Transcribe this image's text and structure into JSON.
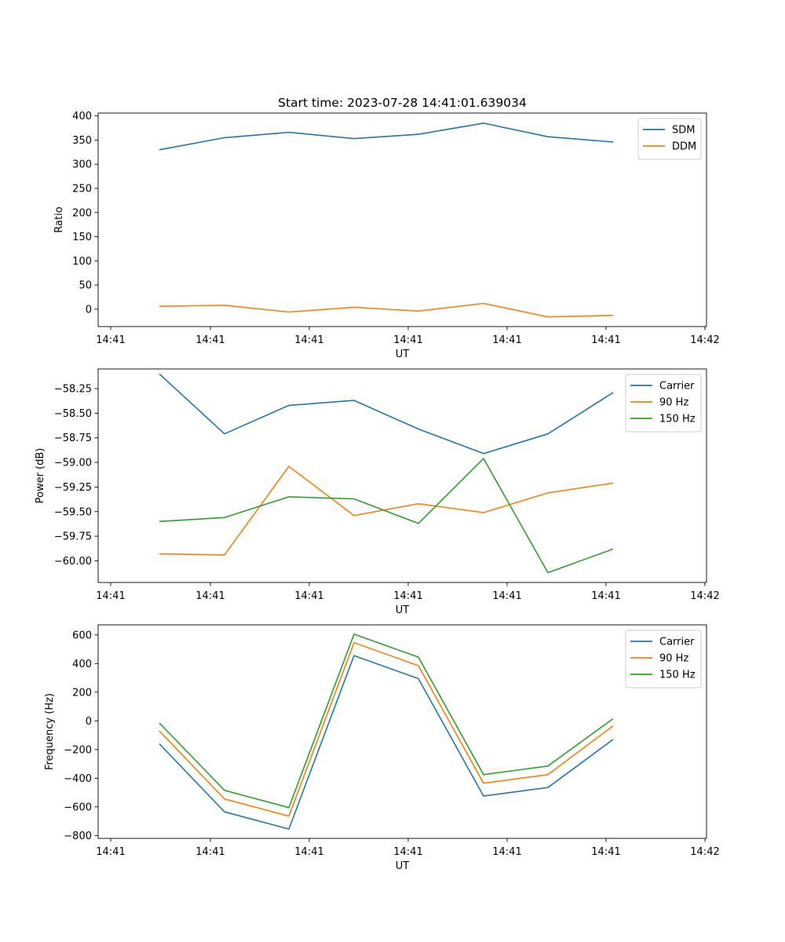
{
  "chart_data": [
    {
      "type": "line",
      "title": "Start time: 2023-07-28 14:41:01.639034",
      "xlabel": "UT",
      "ylabel": "Ratio",
      "legend": "top-right",
      "x_tick_labels": [
        "14:41",
        "14:41",
        "14:41",
        "14:41",
        "14:41",
        "14:41",
        "14:42"
      ],
      "yticks": [
        0,
        50,
        100,
        150,
        200,
        250,
        300,
        350,
        400
      ],
      "ytick_labels": [
        "0",
        "50",
        "100",
        "150",
        "200",
        "250",
        "300",
        "350",
        "400"
      ],
      "ylim": [
        -36,
        406
      ],
      "series": [
        {
          "name": "SDM",
          "color": "#1f77b4",
          "values": [
            330,
            355,
            366,
            353,
            362,
            385,
            357,
            346
          ]
        },
        {
          "name": "DDM",
          "color": "#ff7f0e",
          "values": [
            6,
            8,
            -6,
            4,
            -4,
            12,
            -16,
            -13
          ]
        }
      ]
    },
    {
      "type": "line",
      "title": "",
      "xlabel": "UT",
      "ylabel": "Power (dB)",
      "legend": "top-right",
      "x_tick_labels": [
        "14:41",
        "14:41",
        "14:41",
        "14:41",
        "14:41",
        "14:41",
        "14:42"
      ],
      "yticks": [
        -60.0,
        -59.75,
        -59.5,
        -59.25,
        -59.0,
        -58.75,
        -58.5,
        -58.25
      ],
      "ytick_labels": [
        "−60.00",
        "−59.75",
        "−59.50",
        "−59.25",
        "−59.00",
        "−58.75",
        "−58.50",
        "−58.25"
      ],
      "ylim": [
        -60.22,
        -58.05
      ],
      "series": [
        {
          "name": "Carrier",
          "color": "#1f77b4",
          "values": [
            -58.1,
            -58.71,
            -58.42,
            -58.37,
            -58.66,
            -58.91,
            -58.71,
            -58.29
          ]
        },
        {
          "name": "90 Hz",
          "color": "#ff7f0e",
          "values": [
            -59.93,
            -59.94,
            -59.04,
            -59.54,
            -59.42,
            -59.51,
            -59.31,
            -59.21
          ]
        },
        {
          "name": "150 Hz",
          "color": "#2ca02c",
          "values": [
            -59.6,
            -59.56,
            -59.35,
            -59.37,
            -59.62,
            -58.96,
            -60.12,
            -59.88
          ]
        }
      ]
    },
    {
      "type": "line",
      "title": "",
      "xlabel": "UT",
      "ylabel": "Frequency (Hz)",
      "legend": "top-right",
      "x_tick_labels": [
        "14:41",
        "14:41",
        "14:41",
        "14:41",
        "14:41",
        "14:41",
        "14:42"
      ],
      "yticks": [
        -800,
        -600,
        -400,
        -200,
        0,
        200,
        400,
        600
      ],
      "ytick_labels": [
        "−800",
        "−600",
        "−400",
        "−200",
        "0",
        "200",
        "400",
        "600"
      ],
      "ylim": [
        -820,
        670
      ],
      "series": [
        {
          "name": "Carrier",
          "color": "#1f77b4",
          "values": [
            -160,
            -635,
            -755,
            455,
            295,
            -525,
            -465,
            -130
          ]
        },
        {
          "name": "90 Hz",
          "color": "#ff7f0e",
          "values": [
            -70,
            -545,
            -665,
            545,
            385,
            -435,
            -375,
            -35
          ]
        },
        {
          "name": "150 Hz",
          "color": "#2ca02c",
          "values": [
            -15,
            -485,
            -605,
            605,
            445,
            -375,
            -315,
            15
          ]
        }
      ]
    }
  ]
}
